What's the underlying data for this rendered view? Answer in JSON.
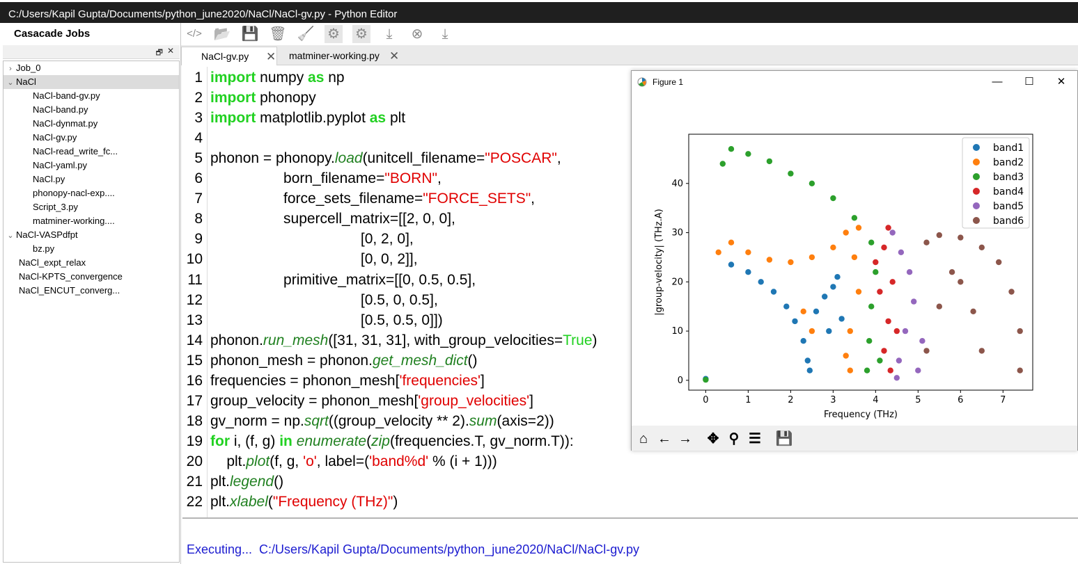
{
  "window": {
    "title": "C:/Users/Kapil Gupta/Documents/python_june2020/NaCl/NaCl-gv.py - Python Editor"
  },
  "jobs_panel": {
    "title": "Casacade Jobs",
    "tree": [
      {
        "label": "Job_0",
        "level": 0,
        "chevron": "right"
      },
      {
        "label": "NaCl",
        "level": 0,
        "chevron": "down",
        "selected": true
      },
      {
        "label": "NaCl-band-gv.py",
        "level": 1
      },
      {
        "label": "NaCl-band.py",
        "level": 1
      },
      {
        "label": "NaCl-dynmat.py",
        "level": 1
      },
      {
        "label": "NaCl-gv.py",
        "level": 1
      },
      {
        "label": "NaCl-read_write_fc...",
        "level": 1
      },
      {
        "label": "NaCl-yaml.py",
        "level": 1
      },
      {
        "label": "NaCl.py",
        "level": 1
      },
      {
        "label": "phonopy-nacl-exp....",
        "level": 1
      },
      {
        "label": "Script_3.py",
        "level": 1
      },
      {
        "label": "matminer-working....",
        "level": 1
      },
      {
        "label": "NaCl-VASPdfpt",
        "level": 0,
        "chevron": "down"
      },
      {
        "label": "bz.py",
        "level": 1
      },
      {
        "label": "NaCl_expt_relax",
        "level": 0
      },
      {
        "label": "NaCl-KPTS_convergence",
        "level": 0
      },
      {
        "label": "NaCl_ENCUT_converg...",
        "level": 0
      }
    ]
  },
  "toolbar": {
    "icons": [
      "code-icon",
      "open-folder-icon",
      "save-icon",
      "trash-icon",
      "broom-icon",
      "run-gear-icon",
      "settings-gear-icon",
      "download-icon",
      "stop-icon",
      "export-icon"
    ]
  },
  "tabs": [
    {
      "label": "NaCl-gv.py",
      "active": true
    },
    {
      "label": "matminer-working.py",
      "active": false
    }
  ],
  "code_lines": [
    [
      [
        "kw",
        "import"
      ],
      [
        "t",
        " numpy "
      ],
      [
        "kw",
        "as"
      ],
      [
        "t",
        " np"
      ]
    ],
    [
      [
        "kw",
        "import"
      ],
      [
        "t",
        " phonopy"
      ]
    ],
    [
      [
        "kw",
        "import"
      ],
      [
        "t",
        " matplotlib.pyplot "
      ],
      [
        "kw",
        "as"
      ],
      [
        "t",
        " plt"
      ]
    ],
    [],
    [
      [
        "t",
        "phonon = phonopy."
      ],
      [
        "fn",
        "load"
      ],
      [
        "t",
        "(unitcell_filename="
      ],
      [
        "st",
        "\"POSCAR\""
      ],
      [
        "t",
        ","
      ]
    ],
    [
      [
        "t",
        "                  born_filename="
      ],
      [
        "st",
        "\"BORN\""
      ],
      [
        "t",
        ","
      ]
    ],
    [
      [
        "t",
        "                  force_sets_filename="
      ],
      [
        "st",
        "\"FORCE_SETS\""
      ],
      [
        "t",
        ","
      ]
    ],
    [
      [
        "t",
        "                  supercell_matrix=[[2, 0, 0],"
      ]
    ],
    [
      [
        "t",
        "                                     [0, 2, 0],"
      ]
    ],
    [
      [
        "t",
        "                                     [0, 0, 2]],"
      ]
    ],
    [
      [
        "t",
        "                  primitive_matrix=[[0, 0.5, 0.5],"
      ]
    ],
    [
      [
        "t",
        "                                     [0.5, 0, 0.5],"
      ]
    ],
    [
      [
        "t",
        "                                     [0.5, 0.5, 0]])"
      ]
    ],
    [
      [
        "t",
        "phonon."
      ],
      [
        "fn",
        "run_mesh"
      ],
      [
        "t",
        "([31, 31, 31], with_group_velocities="
      ],
      [
        "tr",
        "True"
      ],
      [
        "t",
        ")"
      ]
    ],
    [
      [
        "t",
        "phonon_mesh = phonon."
      ],
      [
        "fn",
        "get_mesh_dict"
      ],
      [
        "t",
        "()"
      ]
    ],
    [
      [
        "t",
        "frequencies = phonon_mesh["
      ],
      [
        "st",
        "'frequencies'"
      ],
      [
        "t",
        "]"
      ]
    ],
    [
      [
        "t",
        "group_velocity = phonon_mesh["
      ],
      [
        "st",
        "'group_velocities'"
      ],
      [
        "t",
        "]"
      ]
    ],
    [
      [
        "t",
        "gv_norm = np."
      ],
      [
        "fn",
        "sqrt"
      ],
      [
        "t",
        "((group_velocity ** 2)."
      ],
      [
        "fn",
        "sum"
      ],
      [
        "t",
        "(axis=2))"
      ]
    ],
    [
      [
        "kw",
        "for"
      ],
      [
        "t",
        " i, (f, g) "
      ],
      [
        "kw",
        "in"
      ],
      [
        "t",
        " "
      ],
      [
        "fn",
        "enumerate"
      ],
      [
        "t",
        "("
      ],
      [
        "fn",
        "zip"
      ],
      [
        "t",
        "(frequencies.T, gv_norm.T)):"
      ]
    ],
    [
      [
        "t",
        "    plt."
      ],
      [
        "fn",
        "plot"
      ],
      [
        "t",
        "(f, g, "
      ],
      [
        "st",
        "'o'"
      ],
      [
        "t",
        ", label=("
      ],
      [
        "st",
        "'band%d'"
      ],
      [
        "t",
        " % (i + 1)))"
      ]
    ],
    [
      [
        "t",
        "plt."
      ],
      [
        "fn",
        "legend"
      ],
      [
        "t",
        "()"
      ]
    ],
    [
      [
        "t",
        "plt."
      ],
      [
        "fn",
        "xlabel"
      ],
      [
        "t",
        "("
      ],
      [
        "st",
        "\"Frequency (THz)\""
      ],
      [
        "t",
        ")"
      ]
    ]
  ],
  "console": {
    "text": "Executing...  C:/Users/Kapil Gupta/Documents/python_june2020/NaCl/NaCl-gv.py"
  },
  "figure": {
    "title": "Figure 1",
    "window_buttons": {
      "minimize": "—",
      "maximize": "☐",
      "close": "✕"
    },
    "nav_icons": [
      "home-icon",
      "back-arrow-icon",
      "forward-arrow-icon",
      "pan-icon",
      "zoom-icon",
      "configure-icon",
      "save-figure-icon"
    ]
  },
  "chart_data": {
    "type": "scatter",
    "xlabel": "Frequency (THz)",
    "ylabel": "|group-velocity| (THz.A)",
    "xlim": [
      -0.4,
      7.7
    ],
    "ylim": [
      -2,
      50
    ],
    "xticks": [
      0,
      1,
      2,
      3,
      4,
      5,
      6,
      7
    ],
    "yticks": [
      0,
      10,
      20,
      30,
      40
    ],
    "legend_position": "top-right",
    "series": [
      {
        "name": "band1",
        "color": "#1f77b4",
        "points": [
          [
            0.0,
            0.3
          ],
          [
            0.6,
            23.5
          ],
          [
            1.0,
            22.0
          ],
          [
            1.3,
            20.0
          ],
          [
            1.6,
            18.0
          ],
          [
            1.9,
            15.0
          ],
          [
            2.1,
            12.0
          ],
          [
            2.3,
            8.0
          ],
          [
            2.4,
            4.0
          ],
          [
            2.45,
            2.0
          ],
          [
            2.6,
            14.0
          ],
          [
            2.8,
            17.0
          ],
          [
            3.0,
            19.0
          ],
          [
            3.1,
            21.0
          ],
          [
            2.9,
            10.0
          ],
          [
            3.2,
            12.5
          ]
        ]
      },
      {
        "name": "band2",
        "color": "#ff7f0e",
        "points": [
          [
            0.3,
            26.0
          ],
          [
            0.6,
            28.0
          ],
          [
            1.0,
            26.0
          ],
          [
            1.5,
            24.5
          ],
          [
            2.0,
            24.0
          ],
          [
            2.5,
            25.0
          ],
          [
            3.0,
            27.0
          ],
          [
            3.3,
            30.0
          ],
          [
            3.6,
            31.0
          ],
          [
            3.5,
            25.0
          ],
          [
            3.6,
            18.0
          ],
          [
            3.4,
            10.0
          ],
          [
            3.3,
            5.0
          ],
          [
            3.4,
            2.0
          ],
          [
            2.3,
            14.0
          ],
          [
            2.5,
            10.0
          ]
        ]
      },
      {
        "name": "band3",
        "color": "#2ca02c",
        "points": [
          [
            0.0,
            0.1
          ],
          [
            0.4,
            44.0
          ],
          [
            0.6,
            47.0
          ],
          [
            1.0,
            46.0
          ],
          [
            1.5,
            44.5
          ],
          [
            2.0,
            42.0
          ],
          [
            2.5,
            40.0
          ],
          [
            3.0,
            37.0
          ],
          [
            3.5,
            33.0
          ],
          [
            3.9,
            28.0
          ],
          [
            4.0,
            22.0
          ],
          [
            3.9,
            15.0
          ],
          [
            3.85,
            8.0
          ],
          [
            3.8,
            2.0
          ],
          [
            4.1,
            4.0
          ]
        ]
      },
      {
        "name": "band4",
        "color": "#d62728",
        "points": [
          [
            4.3,
            31.0
          ],
          [
            4.2,
            27.0
          ],
          [
            4.0,
            24.0
          ],
          [
            4.1,
            18.0
          ],
          [
            4.3,
            12.0
          ],
          [
            4.2,
            6.0
          ],
          [
            4.35,
            2.0
          ],
          [
            4.5,
            10.0
          ],
          [
            4.4,
            20.0
          ]
        ]
      },
      {
        "name": "band5",
        "color": "#9467bd",
        "points": [
          [
            4.4,
            30.0
          ],
          [
            4.6,
            26.0
          ],
          [
            4.8,
            22.0
          ],
          [
            4.9,
            16.0
          ],
          [
            4.7,
            10.0
          ],
          [
            4.55,
            4.0
          ],
          [
            4.5,
            0.5
          ],
          [
            5.0,
            2.0
          ],
          [
            5.1,
            8.0
          ]
        ]
      },
      {
        "name": "band6",
        "color": "#8c564b",
        "points": [
          [
            5.2,
            28.0
          ],
          [
            5.5,
            29.5
          ],
          [
            6.0,
            29.0
          ],
          [
            6.5,
            27.0
          ],
          [
            6.9,
            24.0
          ],
          [
            7.2,
            18.0
          ],
          [
            7.4,
            10.0
          ],
          [
            7.4,
            2.0
          ],
          [
            5.2,
            6.0
          ],
          [
            5.5,
            15.0
          ],
          [
            5.8,
            22.0
          ],
          [
            6.0,
            20.0
          ],
          [
            6.3,
            14.0
          ],
          [
            6.5,
            6.0
          ]
        ]
      }
    ]
  }
}
